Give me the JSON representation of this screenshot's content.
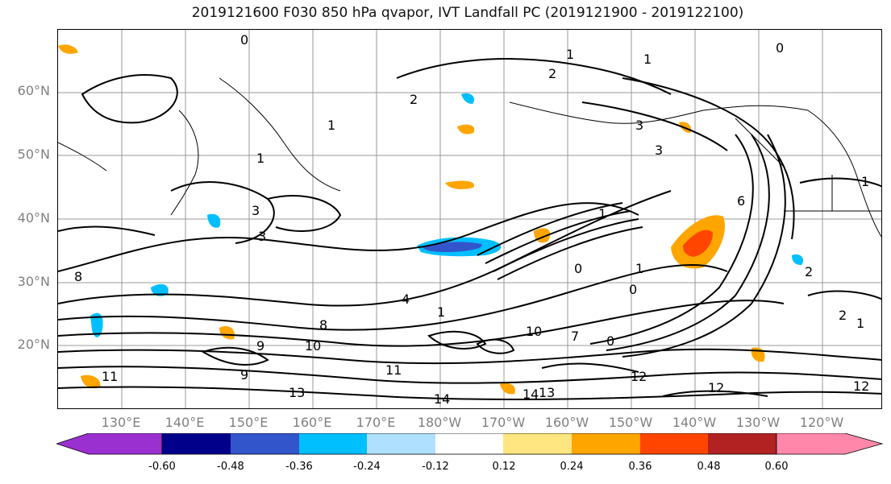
{
  "title": "2019121600 F030 850 hPa qvapor, IVT Landfall PC (2019121900 - 2019122100)",
  "latitude_labels": [
    "60°N",
    "50°N",
    "40°N",
    "30°N",
    "20°N"
  ],
  "longitude_labels": [
    "130°E",
    "140°E",
    "150°E",
    "160°E",
    "170°E",
    "180°W",
    "170°W",
    "160°W",
    "150°W",
    "140°W",
    "130°W",
    "120°W"
  ],
  "contour_labels": [
    "0",
    "1",
    "2",
    "1",
    "2",
    "0",
    "1",
    "3",
    "3",
    "1",
    "1",
    "3",
    "6",
    "1",
    "3",
    "0",
    "1",
    "0",
    "2",
    "8",
    "9",
    "11",
    "13",
    "10",
    "14",
    "14",
    "12",
    "12",
    "13",
    "2",
    "1",
    "0",
    "12",
    "1",
    "4",
    "7",
    "10",
    "8",
    "9",
    "11"
  ],
  "colorbar": {
    "ticks": [
      "-0.60",
      "-0.48",
      "-0.36",
      "-0.24",
      "-0.12",
      "0.12",
      "0.24",
      "0.36",
      "0.48",
      "0.60"
    ],
    "colors": [
      "#9b30d0",
      "#00008b",
      "#3355cc",
      "#00bfff",
      "#b0e0ff",
      "#ffffff",
      "#ffe680",
      "#ffa500",
      "#ff4500",
      "#b22222",
      "#ff88aa"
    ]
  },
  "map": {
    "land_outline_color": "#000000",
    "contour_color": "#000000",
    "gridline_color": "#999999",
    "graticule_lat": "every 10°",
    "graticule_lon": "every 10°"
  }
}
